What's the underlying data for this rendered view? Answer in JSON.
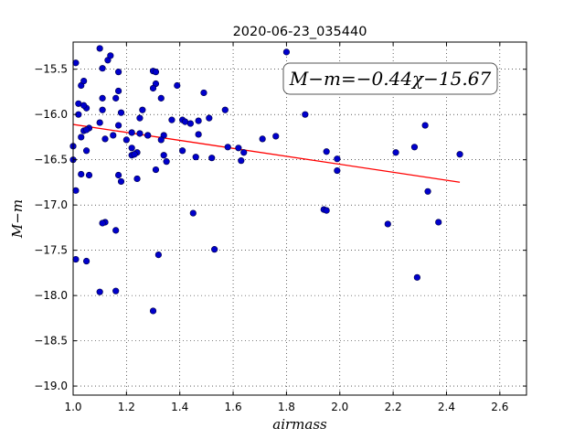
{
  "chart_data": {
    "type": "scatter",
    "title": "2020-06-23_035440",
    "xlabel": "airmass",
    "ylabel": "M−m",
    "xlim": [
      1.0,
      2.7
    ],
    "ylim": [
      -15.2,
      -19.1
    ],
    "y_inverted": true,
    "grid": true,
    "grid_style": "dotted",
    "point_color": "#0000cc",
    "fit_color": "#ff0000",
    "xticks": [
      1.0,
      1.2,
      1.4,
      1.6,
      1.8,
      2.0,
      2.2,
      2.4,
      2.6
    ],
    "xtick_labels": [
      "1.0",
      "1.2",
      "1.4",
      "1.6",
      "1.8",
      "2.0",
      "2.2",
      "2.4",
      "2.6"
    ],
    "yticks": [
      -15.5,
      -16.0,
      -16.5,
      -17.0,
      -17.5,
      -18.0,
      -18.5,
      -19.0
    ],
    "ytick_labels": [
      "−15.5",
      "−16.0",
      "−16.5",
      "−17.0",
      "−17.5",
      "−18.0",
      "−18.5",
      "−19.0"
    ],
    "annotation": "M−m=−0.44χ−15.67",
    "annotation_position": "top-right",
    "fit": {
      "slope": -0.44,
      "intercept": -15.67,
      "x_range": [
        1.0,
        2.45
      ]
    },
    "series": [
      {
        "kind": "points",
        "x": [
          1.0,
          1.01,
          1.02,
          1.03,
          1.04,
          1.05,
          1.06,
          1.03,
          1.05,
          1.03,
          1.01,
          1.02,
          1.0,
          1.04,
          1.04,
          1.05,
          1.06,
          1.05,
          1.01,
          1.1,
          1.13,
          1.11,
          1.17,
          1.14,
          1.11,
          1.17,
          1.16,
          1.18,
          1.11,
          1.1,
          1.12,
          1.17,
          1.15,
          1.2,
          1.18,
          1.17,
          1.12,
          1.16,
          1.11,
          1.16,
          1.1,
          1.22,
          1.25,
          1.26,
          1.24,
          1.22,
          1.23,
          1.24,
          1.25,
          1.22,
          1.28,
          1.28,
          1.3,
          1.31,
          1.31,
          1.3,
          1.33,
          1.31,
          1.34,
          1.33,
          1.34,
          1.35,
          1.32,
          1.3,
          1.37,
          1.39,
          1.41,
          1.42,
          1.41,
          1.44,
          1.46,
          1.47,
          1.47,
          1.49,
          1.51,
          1.52,
          1.45,
          1.53,
          1.57,
          1.58,
          1.62,
          1.63,
          1.64,
          1.71,
          1.76,
          1.8,
          1.87,
          1.94,
          1.95,
          1.95,
          1.99,
          1.99,
          2.18,
          2.21,
          2.28,
          2.29,
          2.32,
          2.33,
          2.37,
          2.45
        ],
        "y": [
          -16.5,
          -15.43,
          -16.0,
          -15.68,
          -15.63,
          -15.93,
          -16.15,
          -16.25,
          -16.4,
          -16.66,
          -16.84,
          -15.88,
          -16.35,
          -15.9,
          -16.18,
          -16.17,
          -16.67,
          -17.62,
          -17.6,
          -15.27,
          -15.4,
          -15.49,
          -15.53,
          -15.35,
          -15.82,
          -15.74,
          -15.82,
          -15.98,
          -15.95,
          -16.09,
          -16.27,
          -16.12,
          -16.23,
          -16.28,
          -16.74,
          -16.67,
          -17.19,
          -17.28,
          -17.2,
          -17.95,
          -17.96,
          -16.2,
          -16.04,
          -15.95,
          -16.42,
          -16.45,
          -16.44,
          -16.71,
          -16.21,
          -16.37,
          -16.23,
          -16.23,
          -15.52,
          -15.53,
          -15.66,
          -15.71,
          -15.82,
          -16.61,
          -16.23,
          -16.28,
          -16.45,
          -16.52,
          -17.55,
          -18.17,
          -16.06,
          -15.68,
          -16.06,
          -16.08,
          -16.4,
          -16.1,
          -16.47,
          -16.07,
          -16.22,
          -15.76,
          -16.04,
          -16.48,
          -17.09,
          -17.49,
          -15.95,
          -16.36,
          -16.37,
          -16.51,
          -16.42,
          -16.27,
          -16.24,
          -15.31,
          -16.0,
          -17.05,
          -17.06,
          -16.41,
          -16.49,
          -16.62,
          -17.21,
          -16.42,
          -16.36,
          -17.8,
          -16.12,
          -16.85,
          -17.19,
          -16.44
        ]
      },
      {
        "kind": "fit-line",
        "name": ""
      }
    ]
  }
}
